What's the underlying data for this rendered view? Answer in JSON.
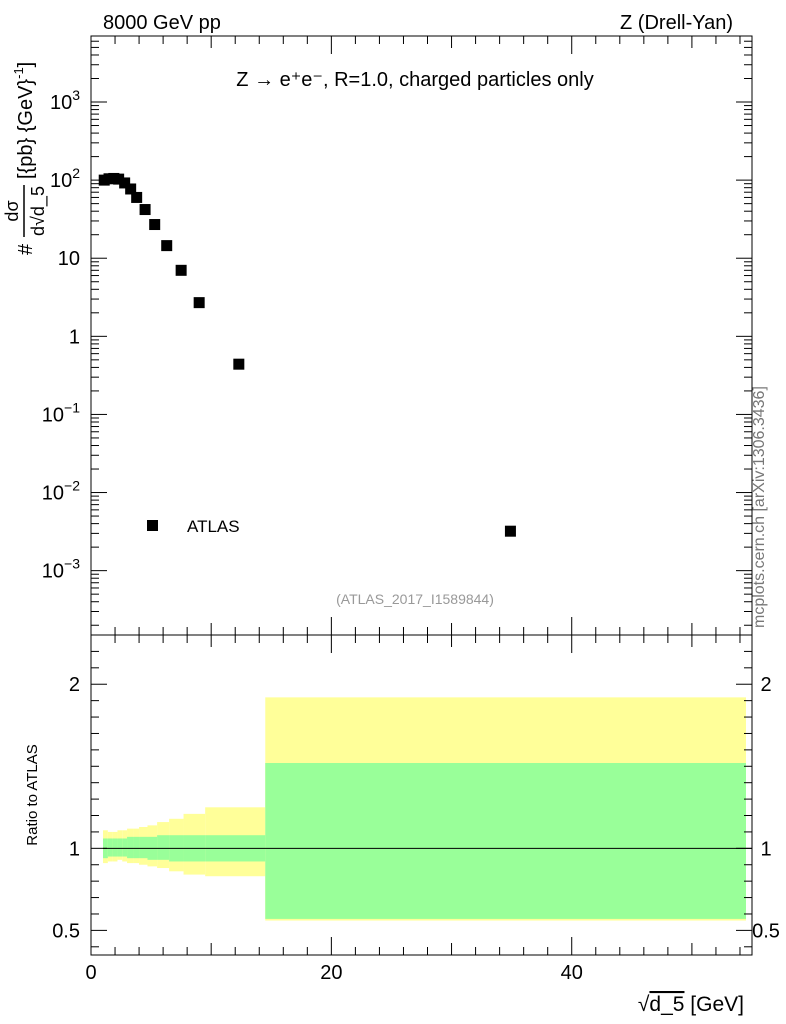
{
  "header": {
    "left": "8000 GeV pp",
    "right": "Z (Drell-Yan)"
  },
  "side_label": "mcplots.cern.ch [arXiv:1306.3436]",
  "chart_data": [
    {
      "type": "scatter",
      "title": "Z → e⁺e⁻, R=1.0, charged particles only",
      "analysis_id": "(ATLAS_2017_I1589844)",
      "ylabel": "# dσ / d√d_5 [{pb} {GeV}⁻¹]",
      "ylabel_parts": {
        "hash": "#",
        "num": "dσ",
        "den": "d√d_5",
        "units": "[{pb} {GeV}",
        "exp": "-1",
        "close": "]"
      },
      "yscale": "log",
      "ylim": [
        0.00015,
        7000
      ],
      "xlim": [
        0,
        55
      ],
      "ytick_labels": [
        {
          "value": 0.001,
          "base": "10",
          "exp": "−3"
        },
        {
          "value": 0.01,
          "base": "10",
          "exp": "−2"
        },
        {
          "value": 0.1,
          "base": "10",
          "exp": "−1"
        },
        {
          "value": 1,
          "base": "1",
          "exp": ""
        },
        {
          "value": 10,
          "base": "10",
          "exp": ""
        },
        {
          "value": 100,
          "base": "10",
          "exp": "2"
        },
        {
          "value": 1000,
          "base": "10",
          "exp": "3"
        }
      ],
      "legend": [
        {
          "name": "ATLAS",
          "marker": "square"
        }
      ],
      "legend_position": "lower-left",
      "series": [
        {
          "name": "ATLAS",
          "x": [
            1.1,
            1.5,
            1.9,
            2.3,
            2.8,
            3.3,
            3.8,
            4.5,
            5.3,
            6.3,
            7.5,
            9.0,
            12.3,
            34.9
          ],
          "y": [
            100,
            104,
            105,
            103,
            92,
            77,
            60,
            42,
            27,
            14.5,
            7.0,
            2.7,
            0.44,
            0.0032
          ]
        }
      ]
    },
    {
      "type": "area",
      "ylabel": "Ratio to ATLAS",
      "xlabel": "√d_5 [GeV]",
      "xlabel_parts": {
        "sqrt": "√",
        "var": "d_5",
        "units": " [GeV]"
      },
      "xlim": [
        0,
        55
      ],
      "ylim": [
        0.35,
        2.3
      ],
      "xtick_labels": [
        {
          "value": 0,
          "label": "0"
        },
        {
          "value": 20,
          "label": "20"
        },
        {
          "value": 40,
          "label": "40"
        }
      ],
      "ytick_labels": [
        {
          "value": 0.5,
          "label": "0.5"
        },
        {
          "value": 1,
          "label": "1"
        },
        {
          "value": 2,
          "label": "2"
        }
      ],
      "reference_line": 1.0,
      "bins": {
        "edges": [
          1.0,
          1.4,
          1.8,
          2.2,
          2.6,
          3.0,
          3.5,
          4.0,
          4.7,
          5.5,
          6.5,
          7.7,
          9.5,
          14.5,
          54.5
        ],
        "total_upper": [
          1.11,
          1.1,
          1.1,
          1.11,
          1.11,
          1.12,
          1.12,
          1.13,
          1.14,
          1.16,
          1.18,
          1.21,
          1.25,
          1.92
        ],
        "total_lower": [
          0.91,
          0.92,
          0.92,
          0.93,
          0.92,
          0.91,
          0.91,
          0.9,
          0.89,
          0.88,
          0.86,
          0.84,
          0.83,
          0.56
        ],
        "stat_upper": [
          1.06,
          1.06,
          1.06,
          1.06,
          1.06,
          1.07,
          1.07,
          1.07,
          1.07,
          1.08,
          1.08,
          1.08,
          1.08,
          1.52
        ],
        "stat_lower": [
          0.94,
          0.95,
          0.95,
          0.95,
          0.95,
          0.94,
          0.94,
          0.94,
          0.93,
          0.93,
          0.92,
          0.92,
          0.92,
          0.57
        ]
      },
      "colors": {
        "total_band": "#ffff99",
        "stat_band": "#99ff99",
        "line": "#000000"
      }
    }
  ]
}
